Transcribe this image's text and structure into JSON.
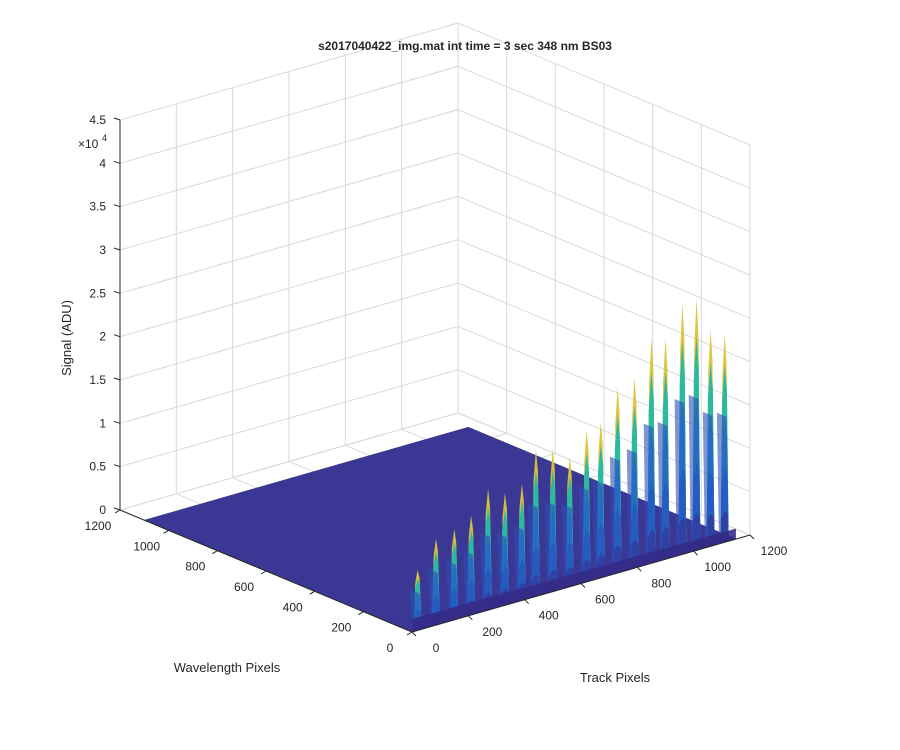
{
  "chart_data": {
    "type": "surface",
    "title": "s2017040422_img.mat int time = 3 sec  348 nm BS03",
    "xlabel": "Track Pixels",
    "ylabel": "Wavelength Pixels",
    "zlabel": "Signal (ADU)",
    "xlim": [
      0,
      1200
    ],
    "ylim": [
      0,
      1200
    ],
    "zlim": [
      0,
      45000
    ],
    "exponent_label": "×10",
    "exponent_power": "4",
    "x_ticks": [
      "0",
      "200",
      "400",
      "600",
      "800",
      "1000",
      "1200"
    ],
    "y_ticks": [
      "0",
      "200",
      "400",
      "600",
      "800",
      "1000",
      "1200"
    ],
    "z_ticks": [
      "0",
      "0.5",
      "1",
      "1.5",
      "2",
      "2.5",
      "3",
      "3.5",
      "4",
      "4.5"
    ],
    "grid": true,
    "colormap": "parula",
    "colors": {
      "low": "#352a87",
      "mid": "#1e9ad5",
      "teal": "#22b8a8",
      "high": "#d9c43a",
      "floor": "#3b3794"
    },
    "stripes": {
      "x_positions": [
        20,
        85,
        150,
        210,
        270,
        330,
        390,
        440,
        500,
        560,
        620,
        670,
        730,
        790,
        850,
        900,
        960,
        1010,
        1060,
        1110
      ],
      "peak_values": [
        7000,
        10000,
        10500,
        11500,
        14000,
        13000,
        13500,
        17000,
        16500,
        15000,
        17500,
        18000,
        21500,
        22000,
        26000,
        25500,
        29000,
        29000,
        25000,
        24000
      ]
    }
  }
}
